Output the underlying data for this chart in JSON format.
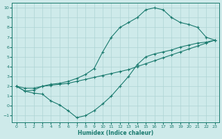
{
  "xlabel": "Humidex (Indice chaleur)",
  "bg_color": "#ceeaea",
  "line_color": "#1a7a6e",
  "grid_color": "#aed4d4",
  "xlim": [
    -0.5,
    23.5
  ],
  "ylim": [
    -1.7,
    10.5
  ],
  "xticks": [
    0,
    1,
    2,
    3,
    4,
    5,
    6,
    7,
    8,
    9,
    10,
    11,
    12,
    13,
    14,
    15,
    16,
    17,
    18,
    19,
    20,
    21,
    22,
    23
  ],
  "yticks": [
    -1,
    0,
    1,
    2,
    3,
    4,
    5,
    6,
    7,
    8,
    9,
    10
  ],
  "line_straight_x": [
    0,
    1,
    2,
    3,
    4,
    5,
    6,
    7,
    8,
    9,
    10,
    11,
    12,
    13,
    14,
    15,
    16,
    17,
    18,
    19,
    20,
    21,
    22,
    23
  ],
  "line_straight_y": [
    2.0,
    1.8,
    1.8,
    2.0,
    2.1,
    2.2,
    2.3,
    2.5,
    2.7,
    2.9,
    3.1,
    3.3,
    3.5,
    3.7,
    4.0,
    4.3,
    4.6,
    4.9,
    5.2,
    5.5,
    5.8,
    6.1,
    6.4,
    6.7
  ],
  "line_upper_x": [
    0,
    1,
    2,
    3,
    4,
    5,
    6,
    7,
    8,
    9,
    10,
    11,
    12,
    13,
    14,
    15,
    16,
    17,
    18,
    19,
    20,
    21,
    22,
    23
  ],
  "line_upper_y": [
    2.0,
    1.5,
    1.6,
    2.0,
    2.2,
    2.3,
    2.5,
    2.8,
    3.2,
    3.8,
    5.5,
    7.0,
    8.0,
    8.5,
    9.0,
    9.8,
    10.0,
    9.8,
    9.0,
    8.5,
    8.3,
    8.0,
    7.0,
    6.7
  ],
  "line_lower_x": [
    0,
    1,
    2,
    3,
    4,
    5,
    6,
    7,
    8,
    9,
    10,
    11,
    12,
    13,
    14,
    15,
    16,
    17,
    18,
    19,
    20,
    21,
    22,
    23
  ],
  "line_lower_y": [
    2.0,
    1.5,
    1.3,
    1.2,
    0.5,
    0.1,
    -0.5,
    -1.2,
    -1.0,
    -0.5,
    0.2,
    1.0,
    2.0,
    3.0,
    4.2,
    5.0,
    5.3,
    5.5,
    5.7,
    6.0,
    6.2,
    6.4,
    6.5,
    6.7
  ]
}
